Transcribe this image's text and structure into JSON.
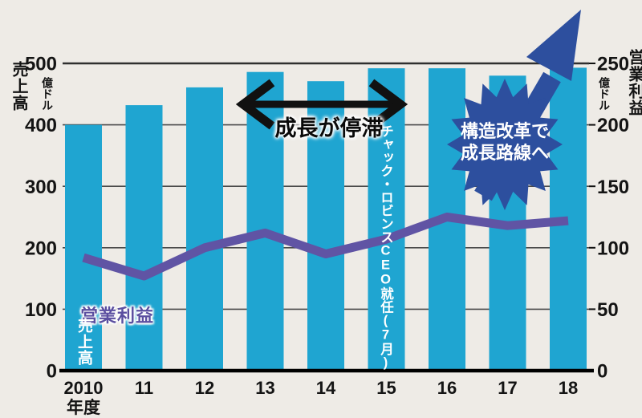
{
  "chart_data": {
    "type": "bar",
    "categories": [
      "2010",
      "11",
      "12",
      "13",
      "14",
      "15",
      "16",
      "17",
      "18"
    ],
    "x_axis_unit": "年度",
    "series": [
      {
        "name": "売上高",
        "type": "bar",
        "axis": "left",
        "values": [
          400,
          432,
          461,
          486,
          471,
          492,
          492,
          480,
          493
        ]
      },
      {
        "name": "営業利益",
        "type": "line",
        "axis": "right",
        "values": [
          92,
          77,
          100,
          112,
          95,
          107,
          125,
          118,
          122
        ]
      }
    ],
    "left_axis": {
      "title": "売上高",
      "unit": "億ドル",
      "ticks": [
        500,
        400,
        300,
        200,
        100,
        0
      ],
      "range": [
        0,
        500
      ]
    },
    "right_axis": {
      "title": "営業利益",
      "unit": "億ドル",
      "ticks": [
        250,
        200,
        150,
        100,
        50,
        0
      ],
      "range": [
        0,
        250
      ]
    },
    "grid": true,
    "legend_position": "on-chart"
  },
  "annotations": {
    "stagnation_label": "成長が停滞",
    "ceo_note": "チャック・ロビンスCEO就任(7月)",
    "burst_line1": "構造改革で",
    "burst_line2": "成長路線へ",
    "bar_series_label": "売上高",
    "line_series_label": "営業利益"
  },
  "colors": {
    "background": "#eeebe6",
    "bar": "#1fa5d1",
    "line": "#6054a4",
    "annotation_blue": "#2d4f9e",
    "annotation_black": "#111111",
    "text": "#141414",
    "gridline": "#4a4a4a"
  }
}
